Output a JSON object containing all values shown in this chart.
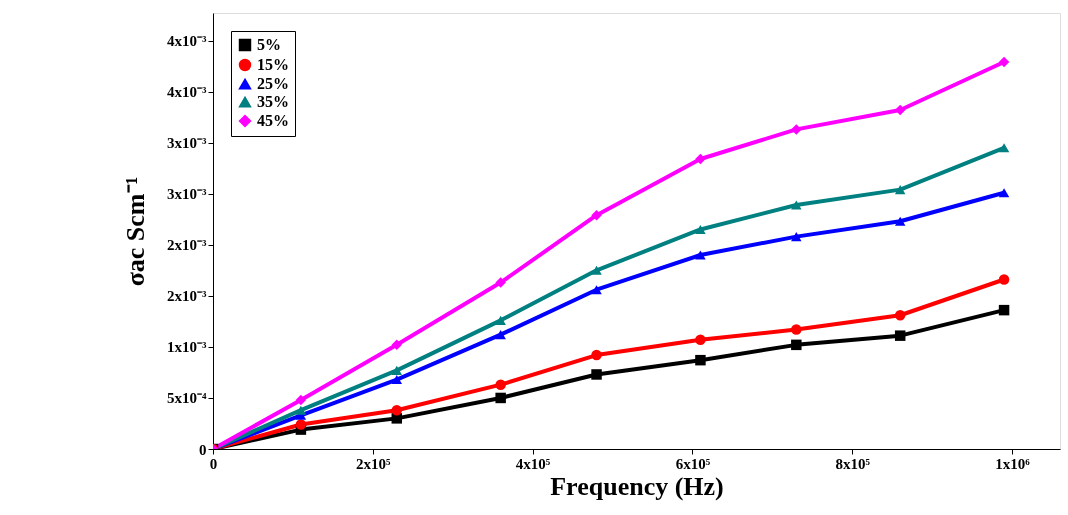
{
  "chart_data": {
    "type": "line",
    "xlabel": "Frequency (Hz)",
    "ylabel": "σac Scm⁻¹",
    "x": [
      0,
      110000,
      230000,
      360000,
      480000,
      610000,
      730000,
      860000,
      990000
    ],
    "series": [
      {
        "name": "5%",
        "color": "#000000",
        "marker": "square",
        "values": [
          0,
          0.00019,
          0.0003,
          0.0005,
          0.00073,
          0.00087,
          0.00102,
          0.00111,
          0.00136
        ]
      },
      {
        "name": "15%",
        "color": "#ff0000",
        "marker": "circle",
        "values": [
          0,
          0.00024,
          0.00038,
          0.00063,
          0.00092,
          0.00107,
          0.00117,
          0.00131,
          0.00166
        ]
      },
      {
        "name": "25%",
        "color": "#0000ff",
        "marker": "triangle",
        "values": [
          0,
          0.00033,
          0.00068,
          0.00112,
          0.00156,
          0.0019,
          0.00208,
          0.00223,
          0.00251
        ]
      },
      {
        "name": "35%",
        "color": "#008080",
        "marker": "triangle",
        "values": [
          0,
          0.00038,
          0.00077,
          0.00126,
          0.00175,
          0.00215,
          0.00239,
          0.00254,
          0.00295
        ]
      },
      {
        "name": "45%",
        "color": "#ff00ff",
        "marker": "diamond",
        "values": [
          0,
          0.00048,
          0.00102,
          0.00163,
          0.00229,
          0.00284,
          0.00313,
          0.00332,
          0.00379
        ]
      }
    ],
    "xlim": [
      0,
      1060000
    ],
    "ylim": [
      0,
      0.00427
    ],
    "xticks": [
      {
        "value": 0,
        "label": "0"
      },
      {
        "value": 200000,
        "label": "2x10⁵"
      },
      {
        "value": 400000,
        "label": "4x10⁵"
      },
      {
        "value": 600000,
        "label": "6x10⁵"
      },
      {
        "value": 800000,
        "label": "8x10⁵"
      },
      {
        "value": 1000000,
        "label": "1x10⁶"
      }
    ],
    "yticks": [
      {
        "value": 0,
        "label": "0"
      },
      {
        "value": 0.0005,
        "label": "5x10⁻⁴"
      },
      {
        "value": 0.001,
        "label": "1x10⁻³"
      },
      {
        "value": 0.0015,
        "label": "2x10⁻³"
      },
      {
        "value": 0.002,
        "label": "2x10⁻³"
      },
      {
        "value": 0.0025,
        "label": "3x10⁻³"
      },
      {
        "value": 0.003,
        "label": "3x10⁻³"
      },
      {
        "value": 0.0035,
        "label": "4x10⁻³"
      },
      {
        "value": 0.004,
        "label": "4x10⁻³"
      }
    ],
    "grid": false,
    "legend": "top left",
    "line_style": "solid"
  }
}
